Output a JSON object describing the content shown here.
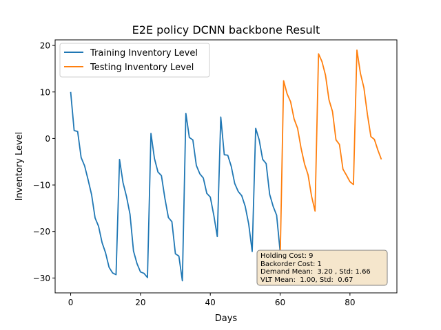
{
  "chart_data": {
    "type": "line",
    "title": "E2E policy DCNN backbone Result",
    "xlabel": "Days",
    "ylabel": "Inventory Level",
    "xlim": [
      -4.45,
      93.45
    ],
    "ylim": [
      -33.2,
      21.2
    ],
    "xticks": [
      0,
      20,
      40,
      60,
      80
    ],
    "xtick_labels": [
      "0",
      "20",
      "40",
      "60",
      "80"
    ],
    "yticks": [
      -30,
      -20,
      -10,
      0,
      10,
      20
    ],
    "ytick_labels": [
      "−30",
      "−20",
      "−10",
      "0",
      "10",
      "20"
    ],
    "grid": false,
    "legend_position": "top-left",
    "series": [
      {
        "name": "Training Inventory Level",
        "color": "#1f77b4",
        "x": [
          0,
          1,
          2,
          3,
          4,
          5,
          6,
          7,
          8,
          9,
          10,
          11,
          12,
          13,
          14,
          15,
          16,
          17,
          18,
          19,
          20,
          21,
          22,
          23,
          24,
          25,
          26,
          27,
          28,
          29,
          30,
          31,
          32,
          33,
          34,
          35,
          36,
          37,
          38,
          39,
          40,
          41,
          42,
          43,
          44,
          45,
          46,
          47,
          48,
          49,
          50,
          51,
          52,
          53,
          54,
          55,
          56,
          57,
          58,
          59,
          60
        ],
        "y": [
          10,
          1.7,
          1.5,
          -4.1,
          -5.9,
          -8.9,
          -12.1,
          -17.1,
          -18.9,
          -22.4,
          -24.6,
          -27.7,
          -28.9,
          -29.3,
          -4.5,
          -9.5,
          -12.5,
          -16.3,
          -24.2,
          -26.9,
          -28.7,
          -29,
          -29.9,
          1.1,
          -4.3,
          -7.2,
          -8,
          -12.9,
          -17,
          -17.9,
          -24.8,
          -25.3,
          -30.6,
          5.4,
          0.2,
          -0.3,
          -5.8,
          -7.6,
          -8.5,
          -11.8,
          -12.6,
          -16.5,
          -21.1,
          4.6,
          -3.5,
          -3.6,
          -6,
          -9.7,
          -11.4,
          -12.3,
          -14.6,
          -18.4,
          -24.3,
          2.2,
          -0.3,
          -4.5,
          -5.4,
          -12,
          -14.6,
          -16.5,
          -24.3
        ]
      },
      {
        "name": "Testing Inventory Level",
        "color": "#ff7f0e",
        "x": [
          60,
          61,
          62,
          63,
          64,
          65,
          66,
          67,
          68,
          69,
          70,
          71,
          72,
          73,
          74,
          75,
          76,
          77,
          78,
          79,
          80,
          81,
          82,
          83,
          84,
          85,
          86,
          87,
          88,
          89
        ],
        "y": [
          -26.5,
          12.4,
          9.6,
          7.9,
          4.2,
          2.2,
          -2.1,
          -5.5,
          -7.8,
          -12.4,
          -15.6,
          18.2,
          16.5,
          13.6,
          8.3,
          5.8,
          -0.3,
          -1.3,
          -6.6,
          -7.9,
          -9.3,
          -9.9,
          19,
          14,
          10.9,
          5.2,
          0.4,
          -0.2,
          -2.5,
          -4.5
        ]
      }
    ],
    "annotation_lines": [
      "Holding Cost: 9",
      "Backorder Cost: 1",
      "Demand Mean:  3.20 , Std: 1.66",
      "VLT Mean:  1.00, Std:  0.67"
    ],
    "annotation_box_color": "#f5e6cc"
  }
}
